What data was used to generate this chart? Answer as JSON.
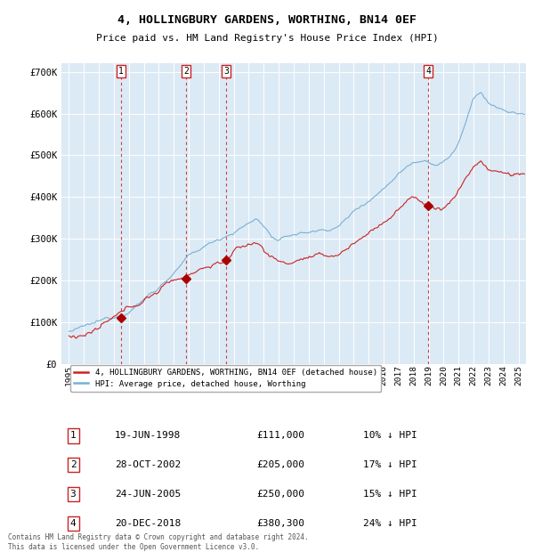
{
  "title": "4, HOLLINGBURY GARDENS, WORTHING, BN14 0EF",
  "subtitle": "Price paid vs. HM Land Registry's House Price Index (HPI)",
  "bg_color": "#dceaf5",
  "hpi_line_color": "#7ab0d4",
  "price_line_color": "#cc2222",
  "marker_color": "#aa0000",
  "dashed_color": "#cc2222",
  "ylim": [
    0,
    720000
  ],
  "yticks": [
    0,
    100000,
    200000,
    300000,
    400000,
    500000,
    600000,
    700000
  ],
  "ytick_labels": [
    "£0",
    "£100K",
    "£200K",
    "£300K",
    "£400K",
    "£500K",
    "£600K",
    "£700K"
  ],
  "purchases": [
    {
      "date_str": "19-JUN-1998",
      "date_x": 1998.46,
      "price": 111000,
      "label": "1",
      "pct": "10%"
    },
    {
      "date_str": "28-OCT-2002",
      "date_x": 2002.82,
      "price": 205000,
      "label": "2",
      "pct": "17%"
    },
    {
      "date_str": "24-JUN-2005",
      "date_x": 2005.48,
      "price": 250000,
      "label": "3",
      "pct": "15%"
    },
    {
      "date_str": "20-DEC-2018",
      "date_x": 2018.97,
      "price": 380300,
      "label": "4",
      "pct": "24%"
    }
  ],
  "legend_label_red": "4, HOLLINGBURY GARDENS, WORTHING, BN14 0EF (detached house)",
  "legend_label_blue": "HPI: Average price, detached house, Worthing",
  "footer": "Contains HM Land Registry data © Crown copyright and database right 2024.\nThis data is licensed under the Open Government Licence v3.0.",
  "table_rows": [
    [
      "1",
      "19-JUN-1998",
      "£111,000",
      "10% ↓ HPI"
    ],
    [
      "2",
      "28-OCT-2002",
      "£205,000",
      "17% ↓ HPI"
    ],
    [
      "3",
      "24-JUN-2005",
      "£250,000",
      "15% ↓ HPI"
    ],
    [
      "4",
      "20-DEC-2018",
      "£380,300",
      "24% ↓ HPI"
    ]
  ],
  "xlim_start": 1994.5,
  "xlim_end": 2025.5
}
